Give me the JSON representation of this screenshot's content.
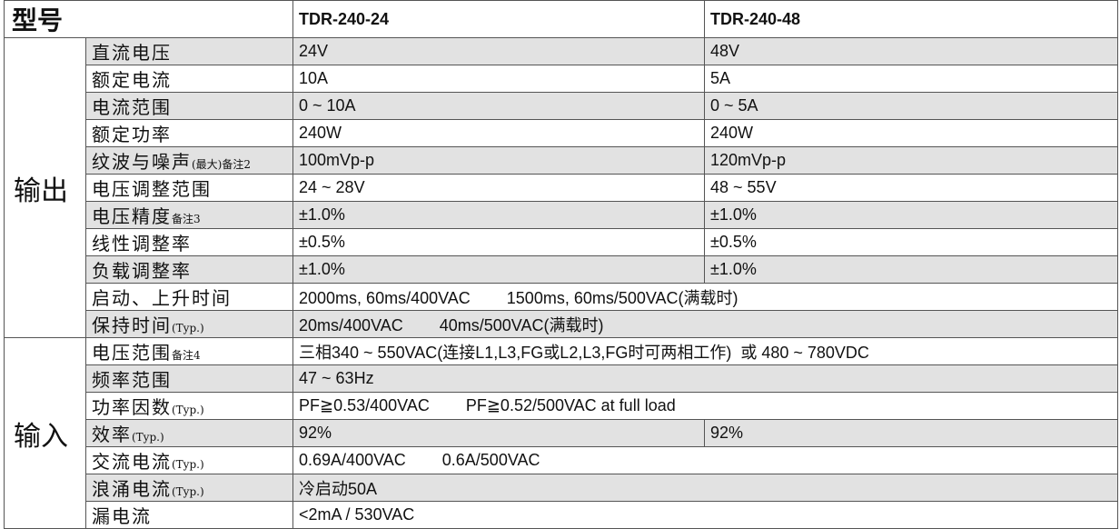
{
  "header": {
    "title": "型号",
    "models": [
      "TDR-240-24",
      "TDR-240-48"
    ]
  },
  "groups": [
    {
      "name": "输出",
      "rows": [
        {
          "label": "直流电压",
          "values": [
            "24V",
            "48V"
          ]
        },
        {
          "label": "额定电流",
          "values": [
            "10A",
            "5A"
          ]
        },
        {
          "label": "电流范围",
          "values": [
            "0 ~ 10A",
            "0 ~ 5A"
          ]
        },
        {
          "label": "额定功率",
          "values": [
            "240W",
            "240W"
          ]
        },
        {
          "label": "纹波与噪声",
          "note": "(最大)备注2",
          "values": [
            "100mVp-p",
            "120mVp-p"
          ]
        },
        {
          "label": "电压调整范围",
          "values": [
            "24 ~ 28V",
            "48 ~ 55V"
          ]
        },
        {
          "label": "电压精度",
          "note": "备注3",
          "values": [
            "±1.0%",
            "±1.0%"
          ]
        },
        {
          "label": "线性调整率",
          "values": [
            "±0.5%",
            "±0.5%"
          ]
        },
        {
          "label": "负载调整率",
          "values": [
            "±1.0%",
            "±1.0%"
          ]
        },
        {
          "label": "启动、上升时间",
          "values": [
            "2000ms, 60ms/400VAC        1500ms, 60ms/500VAC(满载时)"
          ]
        },
        {
          "label": "保持时间",
          "note": "(Typ.)",
          "values": [
            "20ms/400VAC        40ms/500VAC(满载时)"
          ]
        }
      ]
    },
    {
      "name": "输入",
      "rows": [
        {
          "label": "电压范围",
          "note": "备注4",
          "values": [
            "三相340 ~ 550VAC(连接L1,L3,FG或L2,L3,FG时可两相工作)  或 480 ~ 780VDC"
          ]
        },
        {
          "label": "频率范围",
          "values": [
            "47 ~ 63Hz"
          ]
        },
        {
          "label": "功率因数",
          "note": "(Typ.)",
          "values": [
            "PF≧0.53/400VAC        PF≧0.52/500VAC at full load"
          ]
        },
        {
          "label": "效率",
          "note": "(Typ.)",
          "values": [
            "92%",
            "92%"
          ]
        },
        {
          "label": "交流电流",
          "note": "(Typ.)",
          "values": [
            "0.69A/400VAC        0.6A/500VAC"
          ]
        },
        {
          "label": "浪涌电流",
          "note": "(Typ.)",
          "values": [
            "冷启动50A"
          ]
        },
        {
          "label": "漏电流",
          "values": [
            "<2mA / 530VAC"
          ]
        }
      ]
    }
  ]
}
